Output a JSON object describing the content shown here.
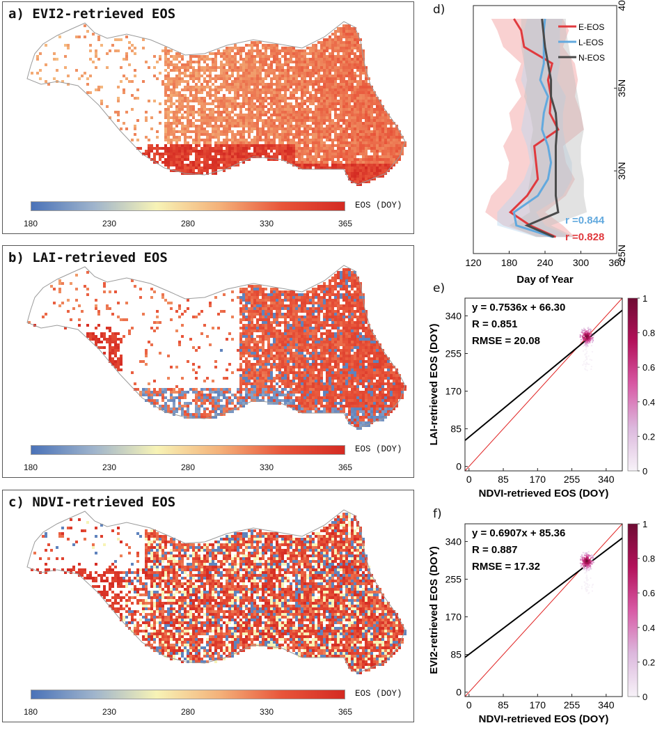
{
  "colors": {
    "eos_ramp": [
      "#4a72b8",
      "#9fb4cc",
      "#f7f3b6",
      "#f4b27a",
      "#e8553a",
      "#d42a22"
    ],
    "e_eos": "#e03a3e",
    "l_eos": "#62a9de",
    "n_eos": "#4a4a4a",
    "r_l_text": "#62a9de",
    "r_e_text": "#e03a3e",
    "density_ramp": [
      "#f7f2f8",
      "#dcb8dd",
      "#d85aa5",
      "#b3115a",
      "#6e0b33"
    ]
  },
  "maps": [
    {
      "id": "a",
      "title": "a) EVI2-retrieved EOS",
      "colorbar_label": "EOS (DOY)",
      "colorbar_ticks": [
        "180",
        "230",
        "280",
        "330",
        "365"
      ],
      "colorbar_values": [
        180,
        230,
        280,
        330,
        365
      ]
    },
    {
      "id": "b",
      "title": "b) LAI-retrieved EOS",
      "colorbar_label": "EOS (DOY)",
      "colorbar_ticks": [
        "180",
        "230",
        "280",
        "330",
        "365"
      ],
      "colorbar_values": [
        180,
        230,
        280,
        330,
        365
      ]
    },
    {
      "id": "c",
      "title": "c) NDVI-retrieved EOS",
      "colorbar_label": "EOS (DOY)",
      "colorbar_ticks": [
        "180",
        "230",
        "280",
        "330",
        "365"
      ],
      "colorbar_values": [
        180,
        230,
        280,
        330,
        365
      ]
    }
  ],
  "chart_data": [
    {
      "id": "d",
      "type": "line",
      "panel_label": "d)",
      "xlabel": "Day of Year",
      "ylabel": "",
      "xlim": [
        120,
        360
      ],
      "ylim": [
        25,
        40
      ],
      "x_ticks": [
        "120",
        "180",
        "240",
        "300",
        "360"
      ],
      "x_tick_values": [
        120,
        180,
        240,
        300,
        360
      ],
      "y_ticks": [
        "25N",
        "30N",
        "35N",
        "40"
      ],
      "y_tick_values": [
        25,
        30,
        35,
        40
      ],
      "series": [
        {
          "name": "E-EOS",
          "lat": [
            26,
            26.7,
            27.5,
            28.5,
            29.5,
            30.5,
            31.5,
            32.5,
            33.5,
            34.5,
            35.5,
            36.5,
            37.5,
            38.5,
            39.2
          ],
          "doy": [
            258,
            215,
            182,
            210,
            228,
            225,
            222,
            262,
            248,
            250,
            245,
            252,
            205,
            200,
            188
          ],
          "band_low": [
            230,
            170,
            140,
            150,
            175,
            180,
            170,
            185,
            180,
            200,
            190,
            200,
            170,
            160,
            150
          ],
          "band_high": [
            290,
            270,
            240,
            275,
            290,
            275,
            270,
            305,
            300,
            290,
            295,
            290,
            270,
            280,
            270
          ]
        },
        {
          "name": "L-EOS",
          "lat": [
            26,
            26.7,
            27.5,
            28.5,
            29.5,
            30.5,
            31.5,
            32.5,
            33.5,
            34.5,
            35.5,
            36.5,
            37.5,
            38.5,
            39.2
          ],
          "doy": [
            253,
            192,
            188,
            228,
            245,
            250,
            245,
            235,
            238,
            245,
            232,
            238,
            238,
            238,
            240
          ],
          "band_low": [
            225,
            160,
            160,
            185,
            205,
            215,
            210,
            200,
            205,
            210,
            200,
            205,
            205,
            205,
            210
          ],
          "band_high": [
            285,
            240,
            225,
            270,
            285,
            285,
            275,
            270,
            270,
            275,
            260,
            265,
            265,
            265,
            270
          ]
        },
        {
          "name": "N-EOS",
          "lat": [
            26,
            26.7,
            27.5,
            28.5,
            29.5,
            30.5,
            31.5,
            32.5,
            33.5,
            34.5,
            35.5,
            36.5,
            37.5,
            38.5,
            39.2
          ],
          "doy": [
            255,
            210,
            262,
            258,
            258,
            258,
            258,
            260,
            258,
            250,
            250,
            245,
            240,
            237,
            235
          ],
          "band_low": [
            225,
            180,
            215,
            210,
            215,
            220,
            215,
            220,
            215,
            205,
            210,
            205,
            200,
            200,
            200
          ],
          "band_high": [
            290,
            250,
            310,
            305,
            305,
            300,
            300,
            305,
            300,
            295,
            290,
            285,
            280,
            275,
            275
          ]
        }
      ],
      "annotations": [
        {
          "text": "r =0.844",
          "series": "L-EOS"
        },
        {
          "text": "r =0.828",
          "series": "E-EOS"
        }
      ],
      "legend": [
        "E-EOS",
        "L-EOS",
        "N-EOS"
      ]
    },
    {
      "id": "e",
      "type": "scatter",
      "panel_label": "e)",
      "xlabel": "NDVI-retrieved EOS (DOY)",
      "ylabel": "LAI-retrieved EOS (DOY)",
      "xlim": [
        -10,
        380
      ],
      "ylim": [
        -10,
        380
      ],
      "x_ticks": [
        "0",
        "85",
        "170",
        "255",
        "340"
      ],
      "x_tick_values": [
        0,
        85,
        170,
        255,
        340
      ],
      "y_ticks": [
        "0",
        "85",
        "170",
        "255",
        "340"
      ],
      "y_tick_values": [
        0,
        85,
        170,
        255,
        340
      ],
      "fit": {
        "slope": 0.7536,
        "intercept": 66.3
      },
      "stats": [
        "y = 0.7536x + 66.30",
        "R = 0.851",
        "RMSE = 20.08"
      ],
      "density_center": [
        292,
        293
      ],
      "colorbar_ticks": [
        "1",
        "0.8",
        "0.6",
        "0.4",
        "0.2",
        "0"
      ],
      "colorbar_values": [
        1,
        0.8,
        0.6,
        0.4,
        0.2,
        0
      ]
    },
    {
      "id": "f",
      "type": "scatter",
      "panel_label": "f)",
      "xlabel": "NDVI-retrieved EOS (DOY)",
      "ylabel": "EVI2-retrieved EOS (DOY)",
      "xlim": [
        -10,
        380
      ],
      "ylim": [
        -10,
        380
      ],
      "x_ticks": [
        "0",
        "85",
        "170",
        "255",
        "340"
      ],
      "x_tick_values": [
        0,
        85,
        170,
        255,
        340
      ],
      "y_ticks": [
        "0",
        "85",
        "170",
        "255",
        "340"
      ],
      "y_tick_values": [
        0,
        85,
        170,
        255,
        340
      ],
      "fit": {
        "slope": 0.6907,
        "intercept": 85.36
      },
      "stats": [
        "y = 0.6907x + 85.36",
        "R = 0.887",
        "RMSE = 17.32"
      ],
      "density_center": [
        292,
        296
      ],
      "colorbar_ticks": [
        "1",
        "0.8",
        "0.6",
        "0.4",
        "0.2",
        "0"
      ],
      "colorbar_values": [
        1,
        0.8,
        0.6,
        0.4,
        0.2,
        0
      ]
    }
  ]
}
